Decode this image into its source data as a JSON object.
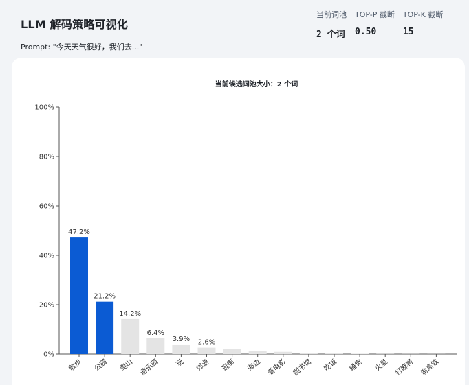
{
  "header": {
    "title": "LLM 解码策略可视化",
    "prompt": "Prompt: \"今天天气很好，我们去...\""
  },
  "stats": [
    {
      "label": "当前词池",
      "value": "2 个词"
    },
    {
      "label": "TOP-P 截断",
      "value": "0.50"
    },
    {
      "label": "TOP-K 截断",
      "value": "15"
    }
  ],
  "colors": {
    "selected": "#0b5bd3",
    "unselected": "#e4e4e4",
    "accent": "#0b5bd3"
  },
  "chart_data": {
    "type": "bar",
    "title": "当前候选词池大小：2 个词",
    "categories": [
      "散步",
      "公园",
      "爬山",
      "游乐园",
      "玩",
      "郊游",
      "逛街",
      "海边",
      "看电影",
      "图书馆",
      "吃饭",
      "睡觉",
      "火星",
      "打麻将",
      "偷高铁"
    ],
    "values": [
      47.2,
      21.2,
      14.2,
      6.4,
      3.9,
      2.6,
      2.0,
      1.2,
      0.9,
      0.5,
      0.3,
      0.15,
      0.08,
      0.05,
      0.03
    ],
    "data_labels": [
      "47.2%",
      "21.2%",
      "14.2%",
      "6.4%",
      "3.9%",
      "2.6%",
      "",
      "",
      "",
      "",
      "",
      "",
      "",
      "",
      ""
    ],
    "selected": [
      true,
      true,
      false,
      false,
      false,
      false,
      false,
      false,
      false,
      false,
      false,
      false,
      false,
      false,
      false
    ],
    "ylim": [
      0,
      100
    ],
    "yticks": [
      0,
      20,
      40,
      60,
      80,
      100
    ],
    "ytick_labels": [
      "0%",
      "20%",
      "40%",
      "60%",
      "80%",
      "100%"
    ],
    "grid": false,
    "legend": "none"
  }
}
